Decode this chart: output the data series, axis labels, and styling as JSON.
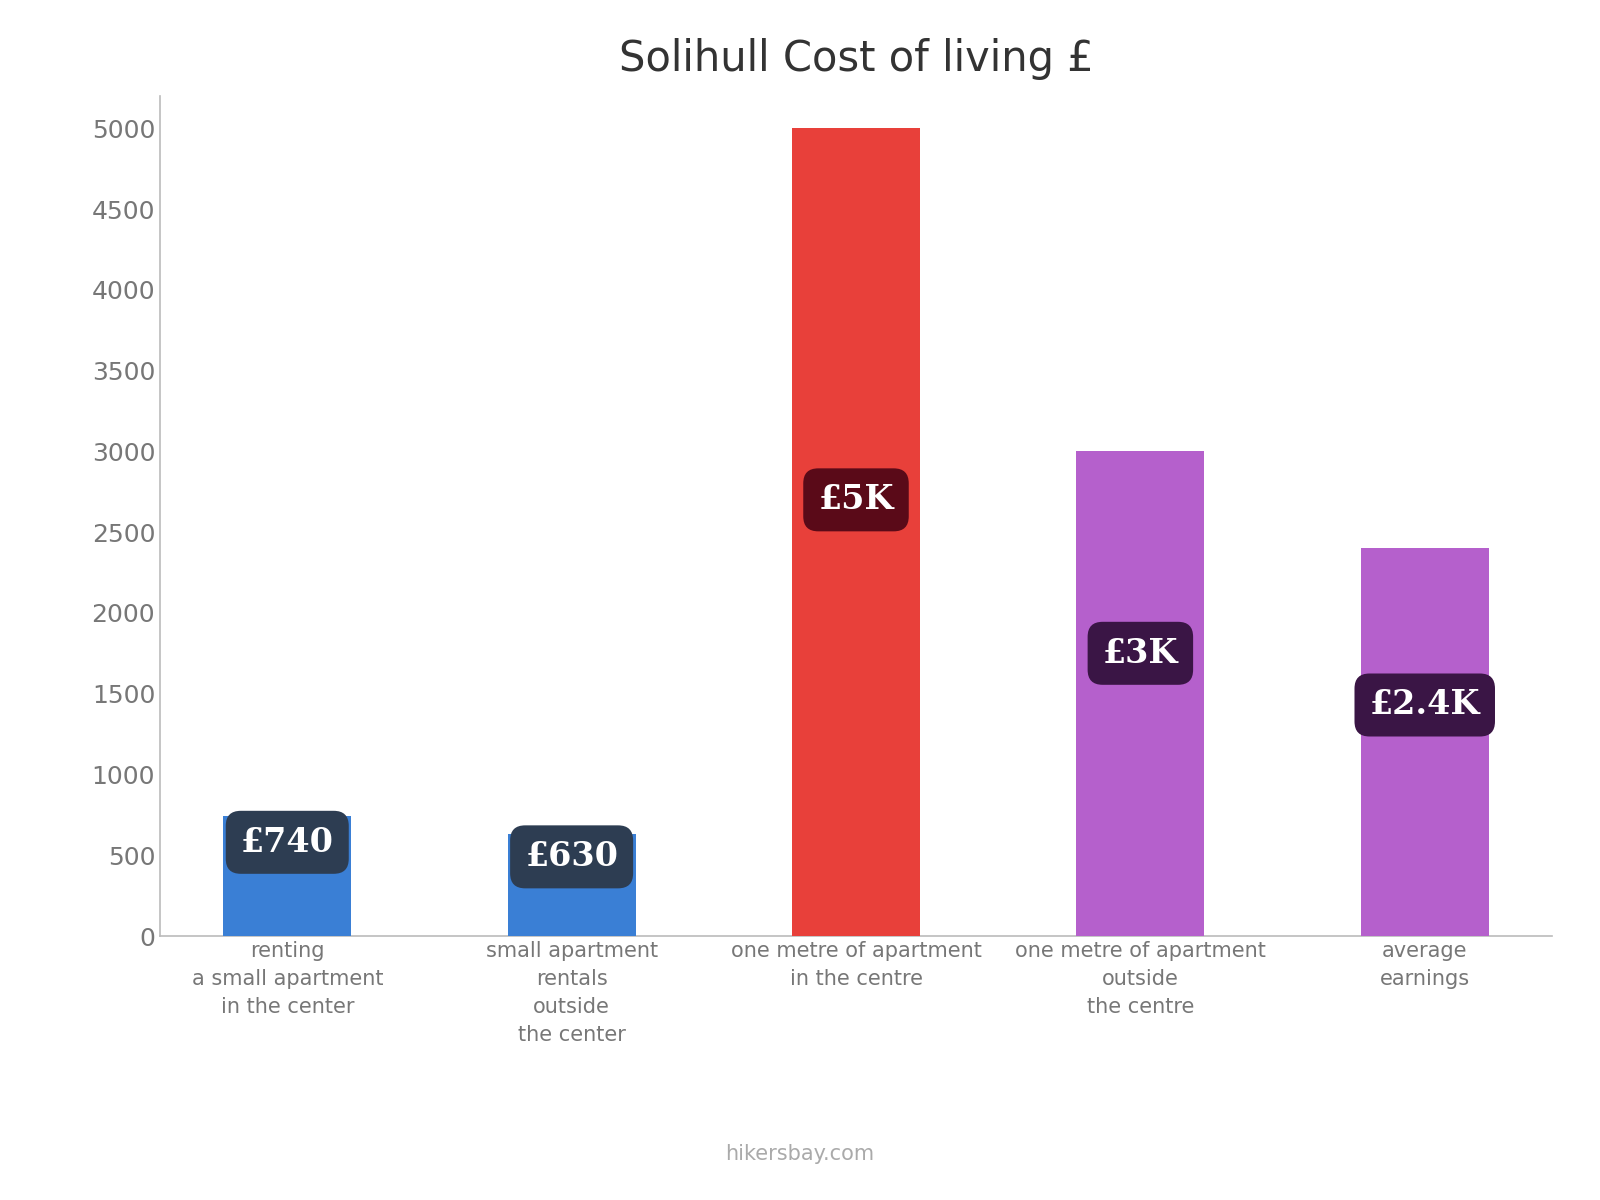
{
  "title": "Solihull Cost of living £",
  "categories": [
    "renting\na small apartment\nin the center",
    "small apartment\nrentals\noutside\nthe center",
    "one metre of apartment\nin the centre",
    "one metre of apartment\noutside\nthe centre",
    "average\nearnings"
  ],
  "values": [
    740,
    630,
    5000,
    3000,
    2400
  ],
  "bar_colors": [
    "#3a7fd5",
    "#3a7fd5",
    "#e8403a",
    "#b560cc",
    "#b560cc"
  ],
  "labels": [
    "£740",
    "£630",
    "£5K",
    "£3K",
    "£2.4K"
  ],
  "label_bg_colors": [
    "#2d3d52",
    "#2d3d52",
    "#5a0a18",
    "#3a1545",
    "#3a1545"
  ],
  "label_y_positions": [
    580,
    490,
    2700,
    1750,
    1430
  ],
  "ylim": [
    0,
    5200
  ],
  "yticks": [
    0,
    500,
    1000,
    1500,
    2000,
    2500,
    3000,
    3500,
    4000,
    4500,
    5000
  ],
  "background_color": "#ffffff",
  "title_fontsize": 30,
  "tick_fontsize": 18,
  "label_fontsize": 24,
  "xlabel_fontsize": 15,
  "footer_text": "hikersbay.com",
  "bar_width": 0.45,
  "spine_color": "#bbbbbb",
  "tick_color": "#777777"
}
